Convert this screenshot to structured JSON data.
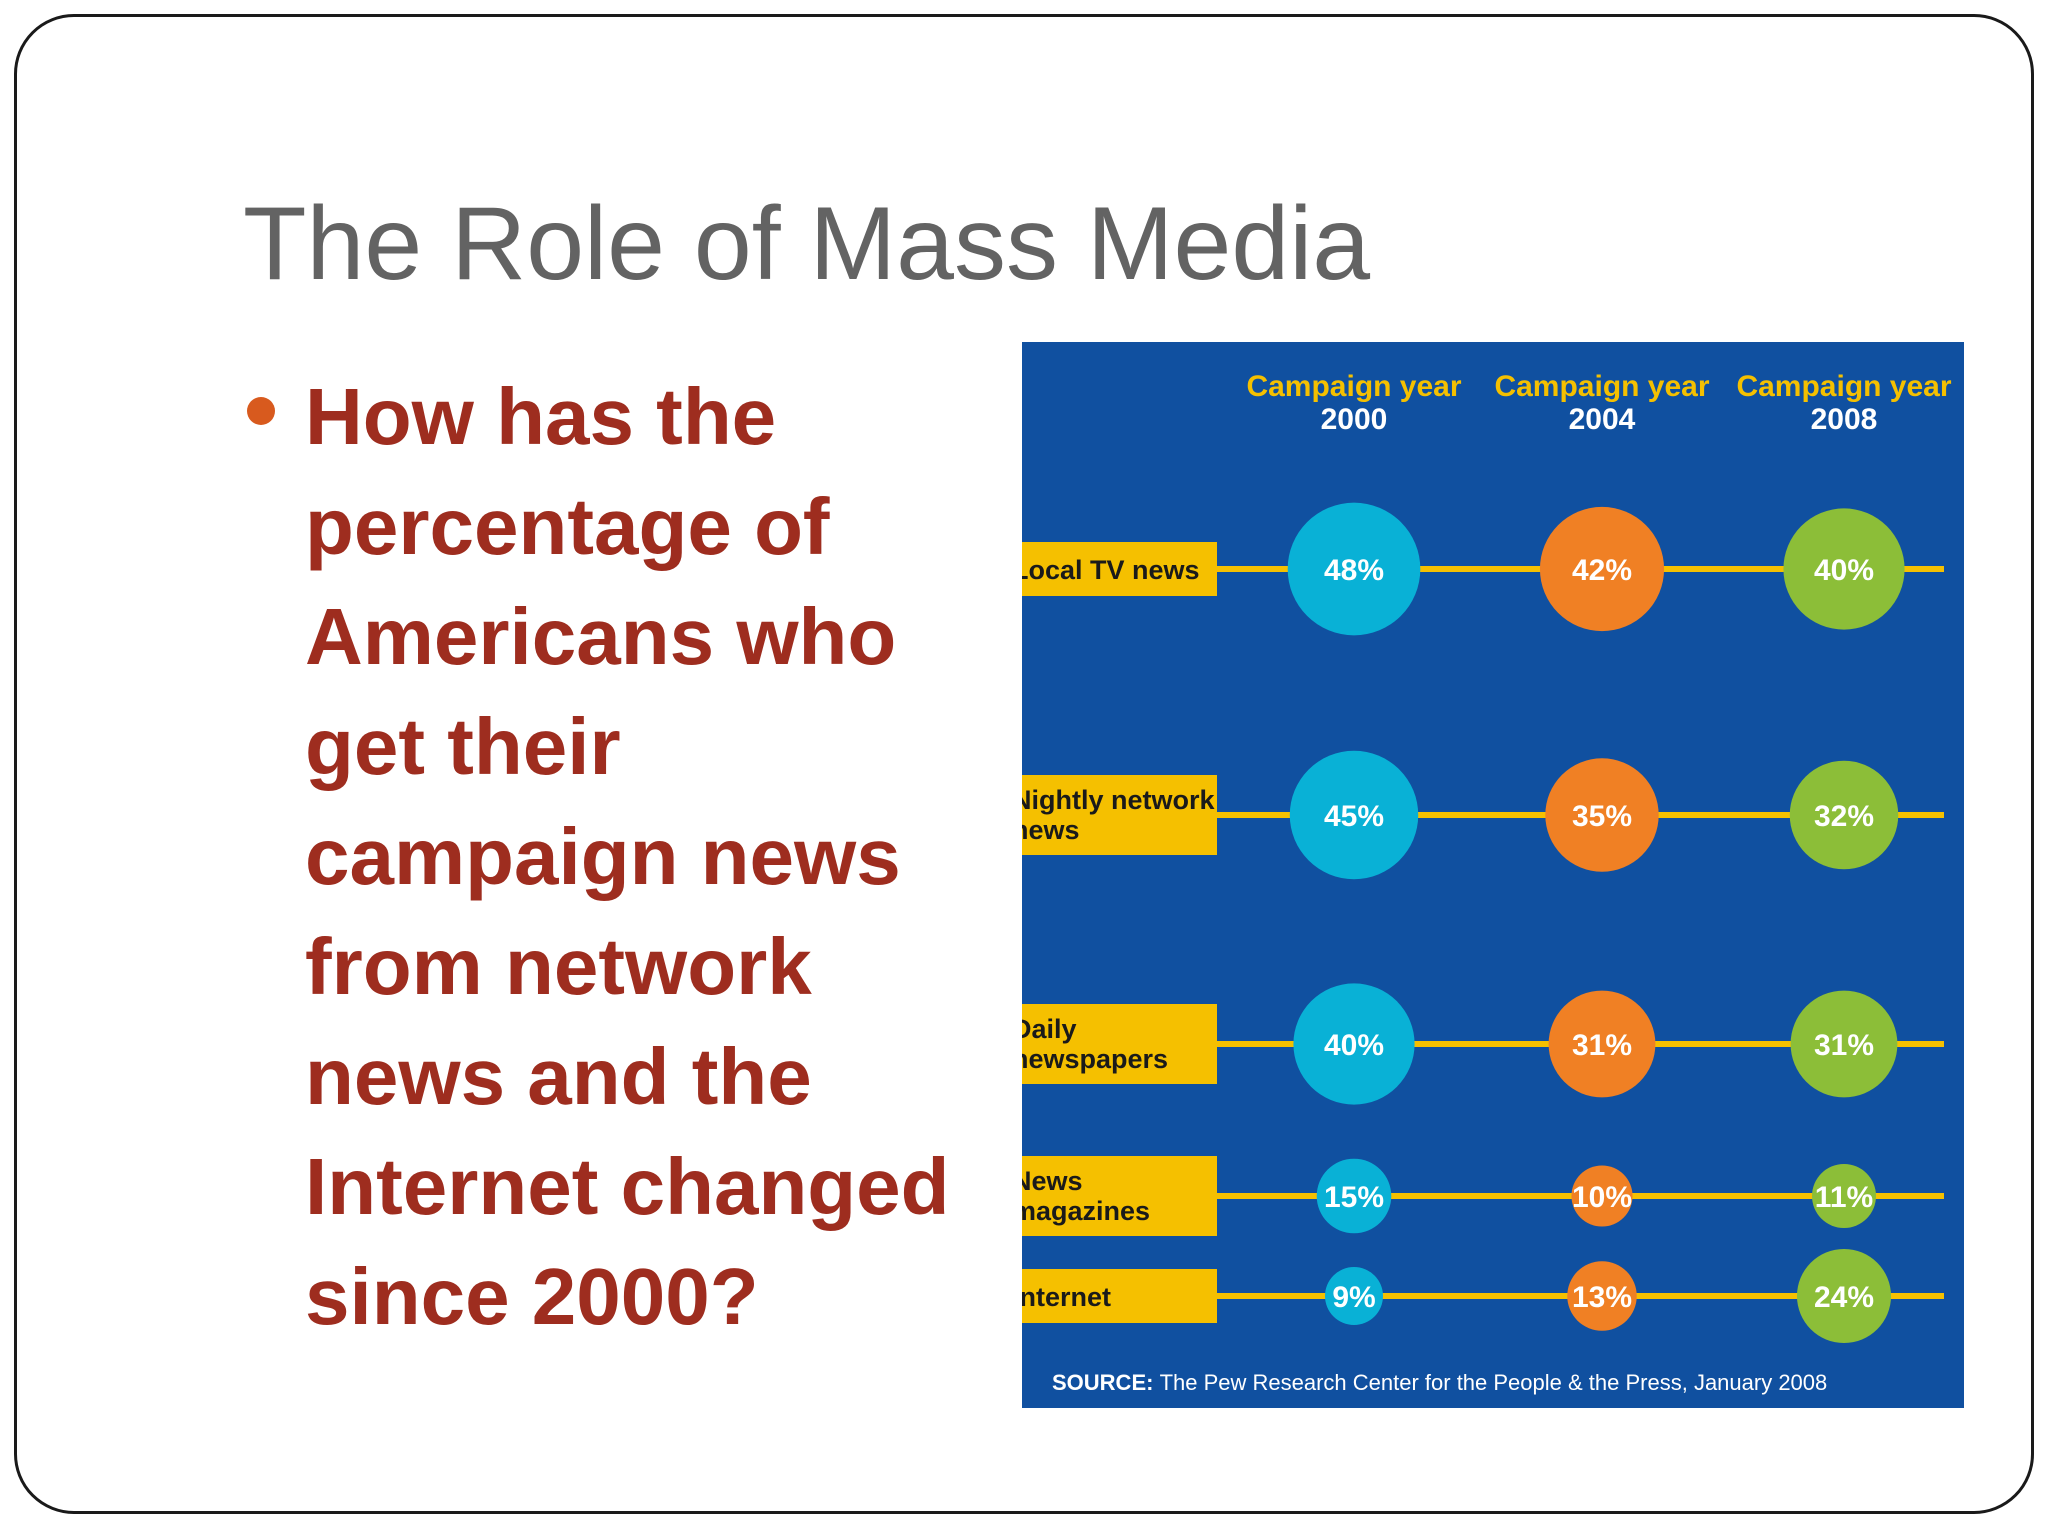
{
  "slide": {
    "title": "The Role of Mass Media",
    "bullet": "How has the percentage of Americans who get their campaign news from network news and the Internet changed since 2000?"
  },
  "chart_data": {
    "type": "bubble-matrix",
    "columns": [
      {
        "line1": "Campaign year",
        "line2": "2000",
        "color": "#09b1d6"
      },
      {
        "line1": "Campaign year",
        "line2": "2004",
        "color": "#f08024"
      },
      {
        "line1": "Campaign year",
        "line2": "2008",
        "color": "#8cbe38"
      }
    ],
    "rows": [
      {
        "label": [
          "Local TV news"
        ],
        "values": [
          48,
          42,
          40
        ]
      },
      {
        "label": [
          "Nightly network",
          "news"
        ],
        "values": [
          45,
          35,
          32
        ]
      },
      {
        "label": [
          "Daily",
          "newspapers"
        ],
        "values": [
          40,
          31,
          31
        ]
      },
      {
        "label": [
          "News",
          "magazines"
        ],
        "values": [
          15,
          10,
          11
        ]
      },
      {
        "label": [
          "Internet"
        ],
        "values": [
          9,
          13,
          24
        ]
      }
    ],
    "unit": "%",
    "source_label": "SOURCE:",
    "source_text": "The Pew Research Center for the People & the Press, January 2008",
    "colors": {
      "background": "#1050a0",
      "label_box": "#f5c000",
      "connector": "#f5c000",
      "header_text": "#f5c000",
      "value_text": "#ffffff"
    }
  }
}
